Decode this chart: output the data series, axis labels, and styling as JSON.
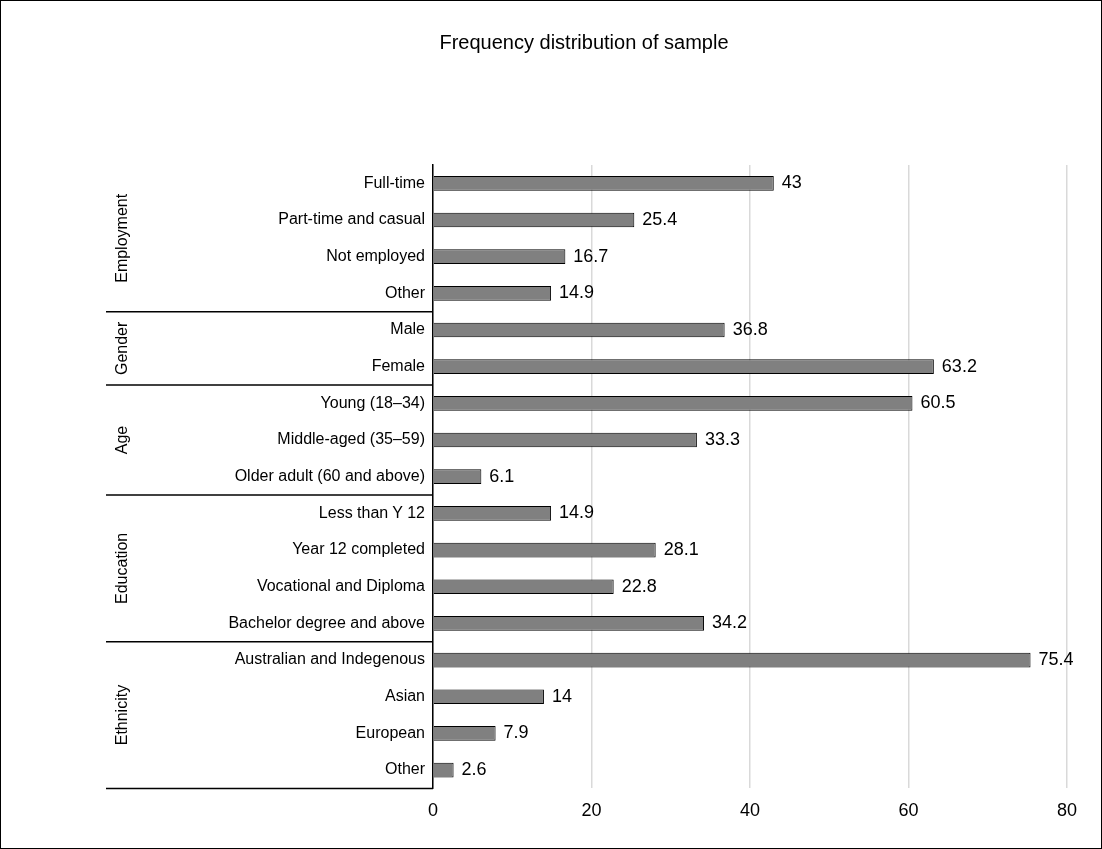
{
  "chart_data": {
    "type": "bar",
    "orientation": "horizontal",
    "title": "Frequency distribution of sample",
    "categories": [
      "Full-time",
      "Part-time and casual",
      "Not employed",
      "Other",
      "Male",
      "Female",
      "Young (18–34)",
      "Middle-aged (35–59)",
      "Older adult (60 and above)",
      "Less than Y 12",
      "Year 12 completed",
      "Vocational and Diploma",
      "Bachelor degree and above",
      "Australian and Indegenous",
      "Asian",
      "European",
      "Other"
    ],
    "values": [
      43,
      25.4,
      16.7,
      14.9,
      36.8,
      63.2,
      60.5,
      33.3,
      6.1,
      14.9,
      28.1,
      22.8,
      34.2,
      75.4,
      14,
      7.9,
      2.6
    ],
    "color": "#808080",
    "xlim": [
      0,
      80
    ],
    "xticks": [
      0,
      20,
      40,
      60,
      80
    ],
    "grid": "x",
    "data_labels": true,
    "annotations": [
      "Employment",
      "Gender",
      "Age",
      "Education",
      "Ethnicity"
    ]
  }
}
